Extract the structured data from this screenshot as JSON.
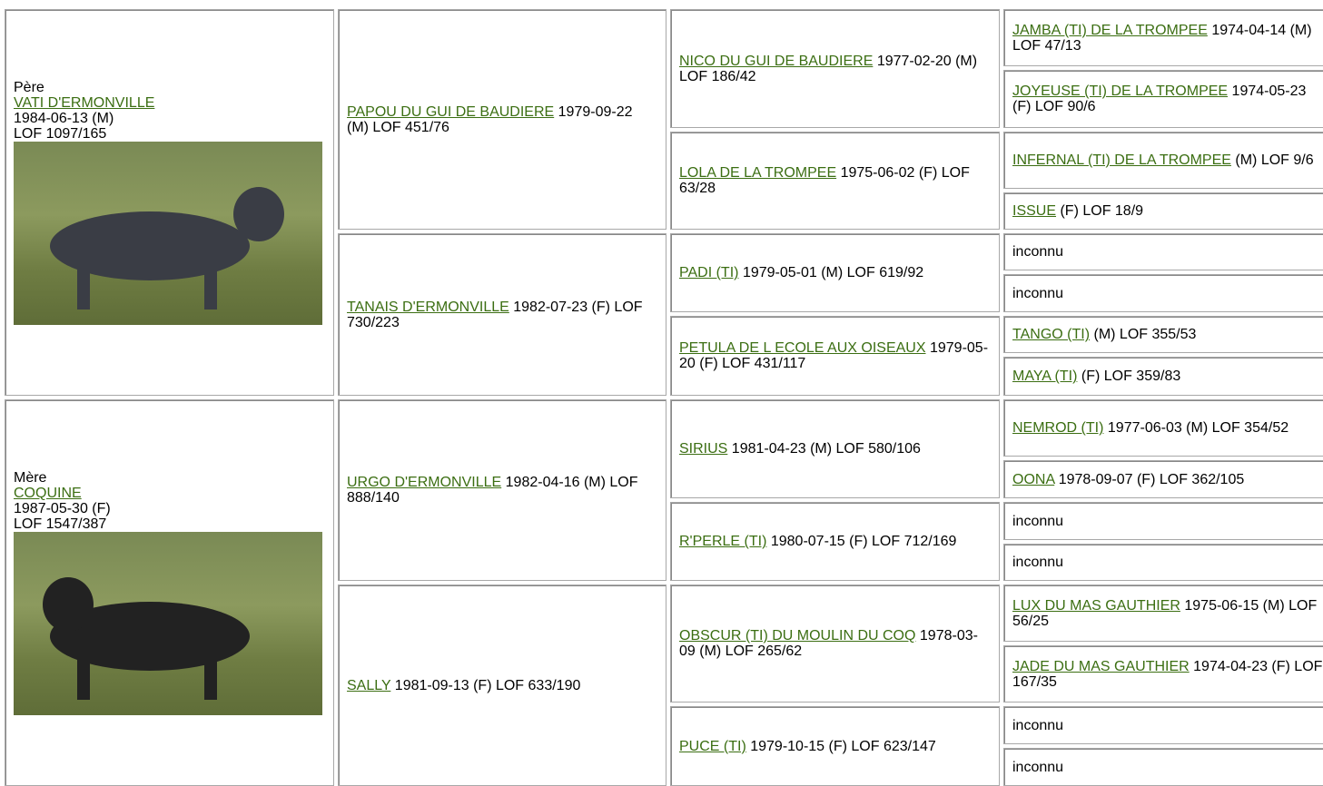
{
  "father": {
    "label": "Père",
    "name": "VATI D'ERMONVILLE",
    "info": [
      "1984-06-13 (M)",
      "LOF 1097/165"
    ]
  },
  "mother": {
    "label": "Mère",
    "name": "COQUINE",
    "info": [
      "1987-05-30 (F)",
      "LOF 1547/387"
    ]
  },
  "generation2": [
    {
      "name": "PAPOU DU GUI DE BAUDIERE",
      "details": "1979-09-22 (M) LOF 451/76"
    },
    {
      "name": "TANAIS D'ERMONVILLE",
      "details": "1982-07-23 (F) LOF 730/223"
    },
    {
      "name": "URGO D'ERMONVILLE",
      "details": "1982-04-16 (M) LOF 888/140"
    },
    {
      "name": "SALLY",
      "details": "1981-09-13 (F) LOF 633/190"
    }
  ],
  "generation3": [
    {
      "name": "NICO DU GUI DE BAUDIERE",
      "details": "1977-02-20 (M) LOF 186/42"
    },
    {
      "name": "LOLA DE LA TROMPEE",
      "details": "1975-06-02 (F) LOF 63/28"
    },
    {
      "name": "PADI (TI)",
      "details": "1979-05-01 (M) LOF 619/92"
    },
    {
      "name": "PETULA DE L ECOLE AUX OISEAUX",
      "details": "1979-05-20 (F) LOF 431/117"
    },
    {
      "name": "SIRIUS",
      "details": "1981-04-23 (M) LOF 580/106"
    },
    {
      "name": "R'PERLE (TI)",
      "details": "1980-07-15 (F) LOF 712/169"
    },
    {
      "name": "OBSCUR (TI) DU MOULIN DU COQ",
      "details": "1978-03-09 (M) LOF 265/62"
    },
    {
      "name": "PUCE (TI)",
      "details": "1979-10-15 (F) LOF 623/147"
    }
  ],
  "generation4": [
    {
      "name": "JAMBA (TI) DE LA TROMPEE",
      "details": "1974-04-14 (M) LOF 47/13"
    },
    {
      "name": "JOYEUSE (TI) DE LA TROMPEE",
      "details": "1974-05-23 (F) LOF 90/6"
    },
    {
      "name": "INFERNAL (TI) DE LA TROMPEE",
      "details": "(M) LOF 9/6"
    },
    {
      "name": "ISSUE",
      "details": "(F) LOF 18/9"
    },
    {
      "text": "inconnu"
    },
    {
      "text": "inconnu"
    },
    {
      "name": "TANGO (TI)",
      "details": "(M) LOF 355/53"
    },
    {
      "name": "MAYA (TI)",
      "details": "(F) LOF 359/83"
    },
    {
      "name": "NEMROD (TI)",
      "details": "1977-06-03 (M) LOF 354/52"
    },
    {
      "name": "OONA",
      "details": "1978-09-07 (F) LOF 362/105"
    },
    {
      "text": "inconnu"
    },
    {
      "text": "inconnu"
    },
    {
      "name": "LUX DU MAS GAUTHIER",
      "details": "1975-06-15 (M) LOF 56/25"
    },
    {
      "name": "JADE DU MAS GAUTHIER",
      "details": "1974-04-23 (F) LOF 167/35"
    },
    {
      "text": "inconnu"
    },
    {
      "text": "inconnu"
    }
  ]
}
